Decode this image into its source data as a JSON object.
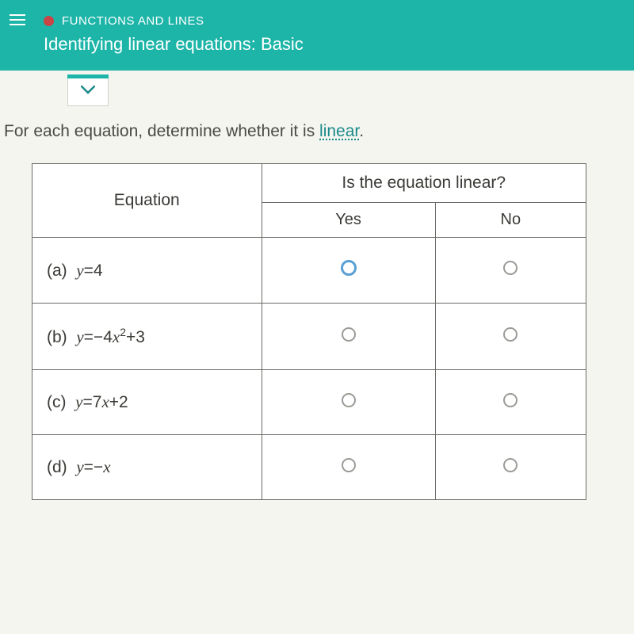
{
  "header": {
    "category": "FUNCTIONS AND LINES",
    "title": "Identifying linear equations: Basic",
    "accent_color": "#1db5a8",
    "dot_color": "#c94444"
  },
  "prompt": {
    "prefix": "For each equation, determine whether it is ",
    "link_word": "linear",
    "suffix": "."
  },
  "table": {
    "eq_header": "Equation",
    "q_header": "Is the equation linear?",
    "yes_label": "Yes",
    "no_label": "No",
    "rows": [
      {
        "label": "(a)",
        "equation_html": "<span class='math-i'>y</span>=4",
        "yes_selected": true,
        "no_selected": false
      },
      {
        "label": "(b)",
        "equation_html": "<span class='math-i'>y</span>=−4<span class='math-i'>x</span><sup>2</sup>+3",
        "yes_selected": false,
        "no_selected": false
      },
      {
        "label": "(c)",
        "equation_html": "<span class='math-i'>y</span>=7<span class='math-i'>x</span>+2",
        "yes_selected": false,
        "no_selected": false
      },
      {
        "label": "(d)",
        "equation_html": "<span class='math-i'>y</span>=−<span class='math-i'>x</span>",
        "yes_selected": false,
        "no_selected": false
      }
    ]
  },
  "style": {
    "border_color": "#6a6a66",
    "text_color": "#3a3a36",
    "link_color": "#1a8a8a",
    "radio_active": "#5a9fd4",
    "radio_border": "#9a9a96"
  }
}
